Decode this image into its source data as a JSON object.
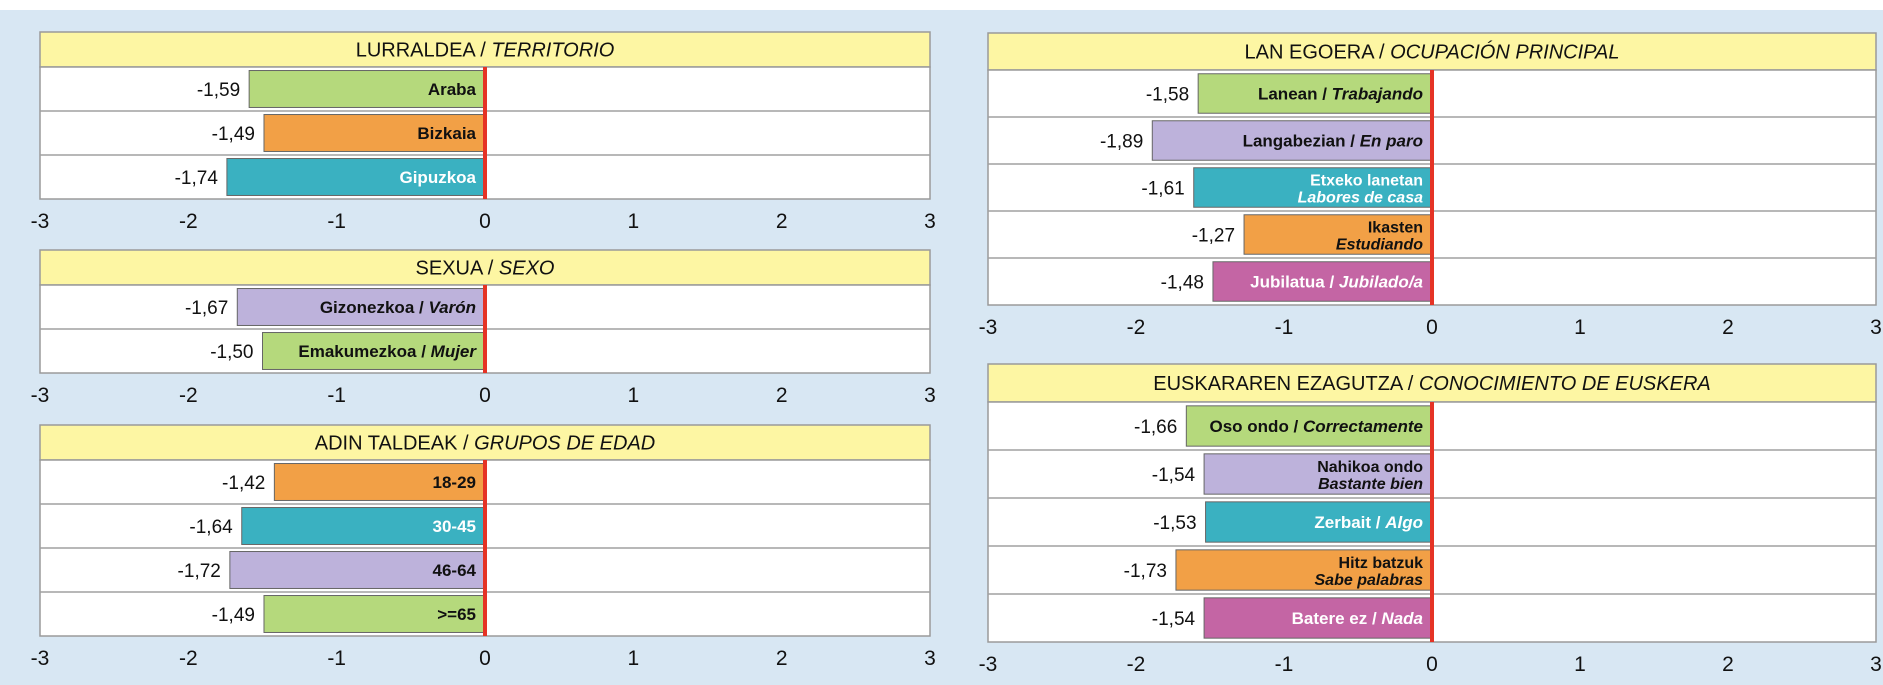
{
  "chart_data": [
    {
      "type": "bar",
      "orientation": "horizontal",
      "title_eu": "LURRALDEA",
      "title_es": "TERRITORIO",
      "xlim": [
        -3,
        3
      ],
      "x_ticks": [
        "-3",
        "-2",
        "-1",
        "0",
        "1",
        "2",
        "3"
      ],
      "bars": [
        {
          "label_eu": "Araba",
          "label_es": "",
          "value": -1.59,
          "value_label": "-1,59",
          "color": "#b5d97c",
          "text_color": "#111111"
        },
        {
          "label_eu": "Bizkaia",
          "label_es": "",
          "value": -1.49,
          "value_label": "-1,49",
          "color": "#f2a046",
          "text_color": "#111111"
        },
        {
          "label_eu": "Gipuzkoa",
          "label_es": "",
          "value": -1.74,
          "value_label": "-1,74",
          "color": "#3ab1c1",
          "text_color": "#ffffff"
        }
      ]
    },
    {
      "type": "bar",
      "orientation": "horizontal",
      "title_eu": "SEXUA",
      "title_es": "SEXO",
      "xlim": [
        -3,
        3
      ],
      "x_ticks": [
        "-3",
        "-2",
        "-1",
        "0",
        "1",
        "2",
        "3"
      ],
      "bars": [
        {
          "label_eu": "Gizonezkoa",
          "label_es": "Varón",
          "value": -1.67,
          "value_label": "-1,67",
          "color": "#bdb2db",
          "text_color": "#111111",
          "layout": "inline"
        },
        {
          "label_eu": "Emakumezkoa",
          "label_es": "Mujer",
          "value": -1.5,
          "value_label": "-1,50",
          "color": "#b5d97c",
          "text_color": "#111111",
          "layout": "inline"
        }
      ]
    },
    {
      "type": "bar",
      "orientation": "horizontal",
      "title_eu": "ADIN TALDEAK",
      "title_es": "GRUPOS DE EDAD",
      "xlim": [
        -3,
        3
      ],
      "x_ticks": [
        "-3",
        "-2",
        "-1",
        "0",
        "1",
        "2",
        "3"
      ],
      "bars": [
        {
          "label_eu": "18-29",
          "label_es": "",
          "value": -1.42,
          "value_label": "-1,42",
          "color": "#f2a046",
          "text_color": "#111111"
        },
        {
          "label_eu": "30-45",
          "label_es": "",
          "value": -1.64,
          "value_label": "-1,64",
          "color": "#3ab1c1",
          "text_color": "#ffffff"
        },
        {
          "label_eu": "46-64",
          "label_es": "",
          "value": -1.72,
          "value_label": "-1,72",
          "color": "#bdb2db",
          "text_color": "#111111"
        },
        {
          "label_eu": ">=65",
          "label_es": "",
          "value": -1.49,
          "value_label": "-1,49",
          "color": "#b5d97c",
          "text_color": "#111111"
        }
      ]
    },
    {
      "type": "bar",
      "orientation": "horizontal",
      "title_eu": "LAN EGOERA",
      "title_es": "OCUPACIÓN PRINCIPAL",
      "xlim": [
        -3,
        3
      ],
      "x_ticks": [
        "-3",
        "-2",
        "-1",
        "0",
        "1",
        "2",
        "3"
      ],
      "bars": [
        {
          "label_eu": "Lanean",
          "label_es": "Trabajando",
          "value": -1.58,
          "value_label": "-1,58",
          "color": "#b5d97c",
          "text_color": "#111111",
          "layout": "inline"
        },
        {
          "label_eu": "Langabezian",
          "label_es": "En paro",
          "value": -1.89,
          "value_label": "-1,89",
          "color": "#bdb2db",
          "text_color": "#111111",
          "layout": "inline"
        },
        {
          "label_eu": "Etxeko lanetan",
          "label_es": "Labores de casa",
          "value": -1.61,
          "value_label": "-1,61",
          "color": "#3ab1c1",
          "text_color": "#ffffff",
          "layout": "stacked"
        },
        {
          "label_eu": "Ikasten",
          "label_es": "Estudiando",
          "value": -1.27,
          "value_label": "-1,27",
          "color": "#f2a046",
          "text_color": "#111111",
          "layout": "stacked"
        },
        {
          "label_eu": "Jubilatua",
          "label_es": "Jubilado/a",
          "value": -1.48,
          "value_label": "-1,48",
          "color": "#c465a4",
          "text_color": "#ffffff",
          "layout": "inline"
        }
      ]
    },
    {
      "type": "bar",
      "orientation": "horizontal",
      "title_eu": "EUSKARAREN EZAGUTZA",
      "title_es": "CONOCIMIENTO DE EUSKERA",
      "xlim": [
        -3,
        3
      ],
      "x_ticks": [
        "-3",
        "-2",
        "-1",
        "0",
        "1",
        "2",
        "3"
      ],
      "bars": [
        {
          "label_eu": "Oso ondo",
          "label_es": "Correctamente",
          "value": -1.66,
          "value_label": "-1,66",
          "color": "#b5d97c",
          "text_color": "#111111",
          "layout": "inline"
        },
        {
          "label_eu": "Nahikoa ondo",
          "label_es": "Bastante bien",
          "value": -1.54,
          "value_label": "-1,54",
          "color": "#bdb2db",
          "text_color": "#111111",
          "layout": "stacked"
        },
        {
          "label_eu": "Zerbait",
          "label_es": "Algo",
          "value": -1.53,
          "value_label": "-1,53",
          "color": "#3ab1c1",
          "text_color": "#ffffff",
          "layout": "inline"
        },
        {
          "label_eu": "Hitz batzuk",
          "label_es": "Sabe palabras",
          "value": -1.73,
          "value_label": "-1,73",
          "color": "#f2a046",
          "text_color": "#111111",
          "layout": "stacked"
        },
        {
          "label_eu": "Batere ez",
          "label_es": "Nada",
          "value": -1.54,
          "value_label": "-1,54",
          "color": "#c465a4",
          "text_color": "#ffffff",
          "layout": "inline"
        }
      ]
    }
  ],
  "colors": {
    "title_band": "#fdf6a3",
    "zero_line": "#e53325",
    "panel_background": "#d8e7f3"
  }
}
